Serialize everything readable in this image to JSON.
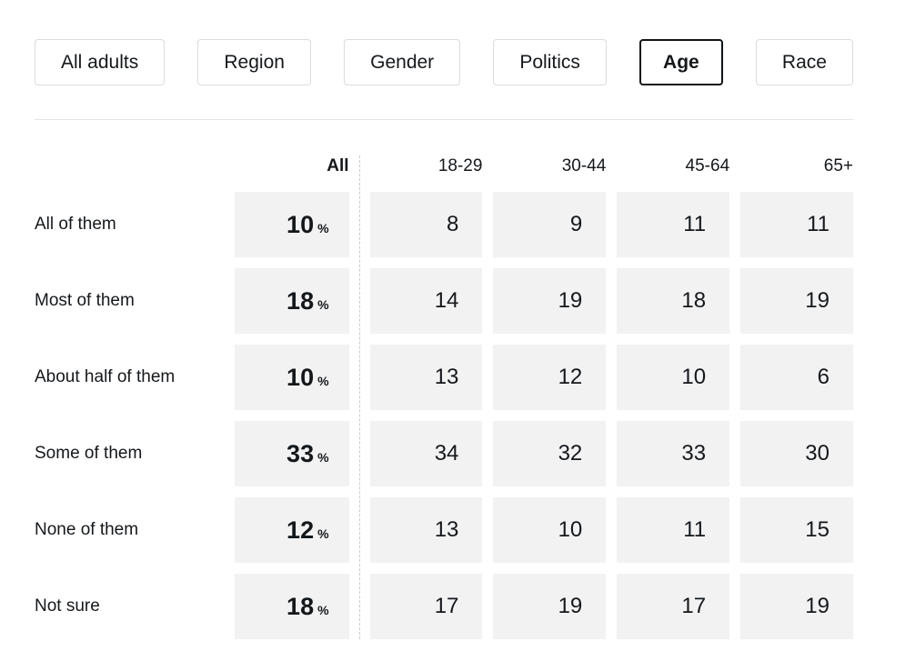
{
  "tabs": [
    {
      "label": "All adults",
      "active": false
    },
    {
      "label": "Region",
      "active": false
    },
    {
      "label": "Gender",
      "active": false
    },
    {
      "label": "Politics",
      "active": false
    },
    {
      "label": "Age",
      "active": true
    },
    {
      "label": "Race",
      "active": false
    }
  ],
  "table": {
    "columns": {
      "all": "All",
      "c1": "18-29",
      "c2": "30-44",
      "c3": "45-64",
      "c4": "65+"
    },
    "percent_sign": "%",
    "rows": [
      {
        "label": "All of them",
        "all": "10",
        "values": [
          "8",
          "9",
          "11",
          "11"
        ]
      },
      {
        "label": "Most of them",
        "all": "18",
        "values": [
          "14",
          "19",
          "18",
          "19"
        ]
      },
      {
        "label": "About half of them",
        "all": "10",
        "values": [
          "13",
          "12",
          "10",
          "6"
        ]
      },
      {
        "label": "Some of them",
        "all": "33",
        "values": [
          "34",
          "32",
          "33",
          "30"
        ]
      },
      {
        "label": "None of them",
        "all": "12",
        "values": [
          "13",
          "10",
          "11",
          "15"
        ]
      },
      {
        "label": "Not sure",
        "all": "18",
        "values": [
          "17",
          "19",
          "17",
          "19"
        ]
      }
    ]
  },
  "chart_data": {
    "type": "table",
    "title": "Survey crosstab by Age",
    "columns": [
      "All",
      "18-29",
      "30-44",
      "45-64",
      "65+"
    ],
    "row_categories": [
      "All of them",
      "Most of them",
      "About half of them",
      "Some of them",
      "None of them",
      "Not sure"
    ],
    "values": [
      [
        10,
        8,
        9,
        11,
        11
      ],
      [
        18,
        14,
        19,
        18,
        19
      ],
      [
        10,
        13,
        12,
        10,
        6
      ],
      [
        33,
        34,
        32,
        33,
        30
      ],
      [
        12,
        13,
        10,
        11,
        15
      ],
      [
        18,
        17,
        19,
        17,
        19
      ]
    ],
    "units": "%",
    "active_filter": "Age"
  },
  "colors": {
    "text": "#15181b",
    "cell_background": "#f2f2f3",
    "tab_border": "#d9dcdf",
    "active_tab_border": "#101418",
    "divider": "#e4e5e7",
    "column_separator": "#c9cbcd"
  }
}
